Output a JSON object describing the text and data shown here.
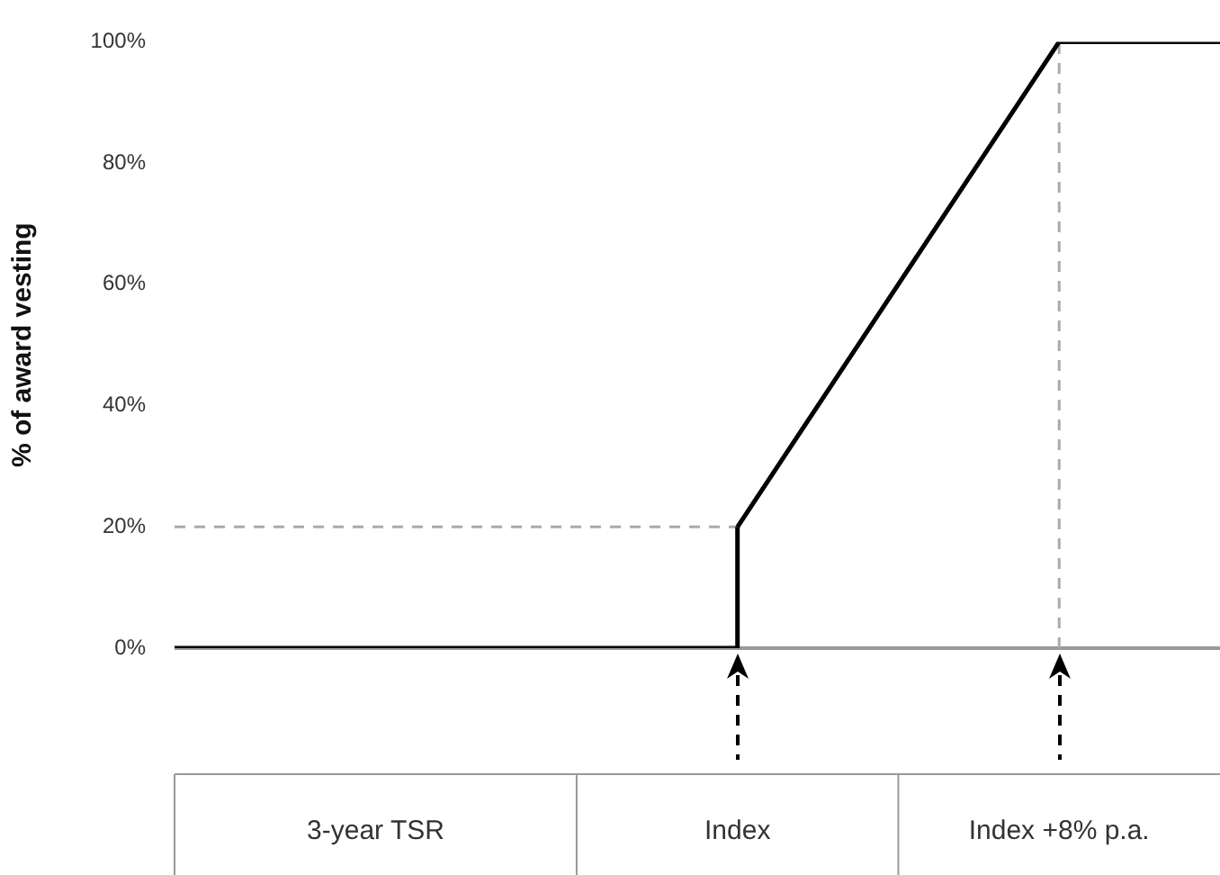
{
  "chart_data": {
    "type": "line",
    "ylabel": "% of award vesting",
    "xlabel": "3-year TSR",
    "categories": [
      null,
      null,
      null,
      null,
      null,
      null,
      null,
      "Index",
      null,
      null,
      null,
      "Index +8% p.a.",
      null,
      null
    ],
    "ylim": [
      0,
      100
    ],
    "yticks": [
      {
        "value": 0,
        "label": "0%"
      },
      {
        "value": 20,
        "label": "20%"
      },
      {
        "value": 40,
        "label": "40%"
      },
      {
        "value": 60,
        "label": "60%"
      },
      {
        "value": 80,
        "label": "80%"
      },
      {
        "value": 100,
        "label": "100%"
      }
    ],
    "grid": false,
    "legend": false,
    "marker": "none",
    "series": [
      {
        "type": "step",
        "color": "#000000",
        "values": [
          0,
          0,
          0,
          0,
          0,
          0,
          0,
          20,
          null,
          null,
          null,
          null,
          null,
          null
        ],
        "line_style": "solid"
      },
      {
        "color": "#000000",
        "values": [
          null,
          null,
          null,
          null,
          null,
          null,
          null,
          20,
          40,
          60,
          80,
          100,
          100,
          100
        ],
        "line_style": "solid"
      },
      {
        "color": "#aaaaaa",
        "values": [
          20,
          20,
          20,
          20,
          20,
          20,
          20,
          20,
          null,
          null,
          null,
          null,
          null,
          null
        ],
        "line_style": "dashed"
      },
      {
        "color": "#aaaaaa",
        "x": [
          "Index +8% p.a.",
          "Index +8% p.a."
        ],
        "values": [
          0,
          100
        ],
        "line_style": "dashed"
      }
    ]
  }
}
